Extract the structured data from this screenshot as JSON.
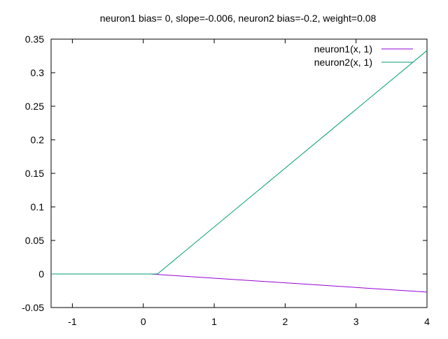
{
  "chart_data": {
    "type": "line",
    "title": "neuron1 bias= 0, slope=-0.006, neuron2 bias=-0.2, weight=0.08",
    "xlabel": "",
    "ylabel": "",
    "xlim": [
      -1.3,
      4
    ],
    "ylim": [
      -0.05,
      0.35
    ],
    "xticks": [
      -1,
      0,
      1,
      2,
      3,
      4
    ],
    "yticks": [
      -0.05,
      0,
      0.05,
      0.1,
      0.15,
      0.2,
      0.25,
      0.3,
      0.35
    ],
    "xtick_labels": [
      "-1",
      "0",
      "1",
      "2",
      "3",
      "4"
    ],
    "ytick_labels": [
      "-0.05",
      "0",
      "0.05",
      "0.1",
      "0.15",
      "0.2",
      "0.25",
      "0.3",
      "0.35"
    ],
    "grid": false,
    "legend_position": "top-right",
    "series": [
      {
        "name": "neuron1(x, 1)",
        "color": "#9400d3",
        "x": [
          -1.3,
          0.1,
          4
        ],
        "y": [
          0,
          0,
          -0.027
        ]
      },
      {
        "name": "neuron2(x, 1)",
        "color": "#009e73",
        "x": [
          -1.3,
          0.2,
          4
        ],
        "y": [
          0,
          0,
          0.333
        ]
      }
    ]
  }
}
